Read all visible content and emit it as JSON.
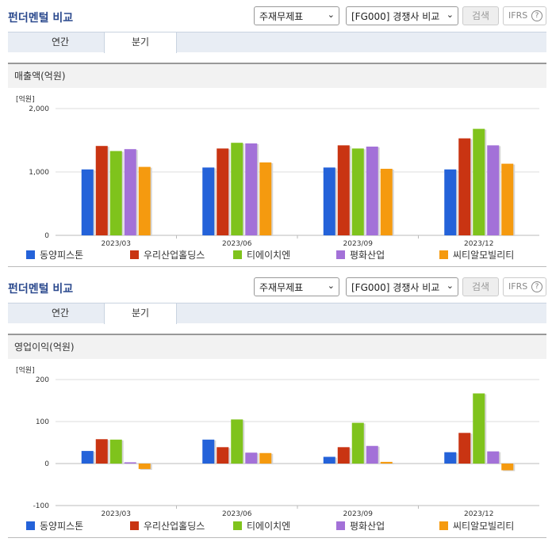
{
  "panels": [
    {
      "title": "펀더멘털 비교",
      "select1": "주재무제표",
      "select2": "[FG000] 경쟁사 비교",
      "search_label": "검색",
      "ifrs_label": "IFRS",
      "ifrs_help": "?",
      "tabs": [
        "연간",
        "분기"
      ],
      "active_tab": "분기",
      "chart_title": "매출액(억원)",
      "unit": "[억원]"
    },
    {
      "title": "펀더멘털 비교",
      "select1": "주재무제표",
      "select2": "[FG000] 경쟁사 비교",
      "search_label": "검색",
      "ifrs_label": "IFRS",
      "ifrs_help": "?",
      "tabs": [
        "연간",
        "분기"
      ],
      "active_tab": "분기",
      "chart_title": "영업이익(억원)",
      "unit": "[억원]"
    }
  ],
  "chart_data": [
    {
      "type": "bar",
      "title": "매출액(억원)",
      "ylabel": "[억원]",
      "categories": [
        "2023/03",
        "2023/06",
        "2023/09",
        "2023/12"
      ],
      "ylim": [
        0,
        2000
      ],
      "yticks": [
        0,
        1000,
        2000
      ],
      "ytick_labels": [
        "0",
        "1,000",
        "2,000"
      ],
      "series": [
        {
          "name": "동양피스톤",
          "color": "#2462d9",
          "values": [
            1040,
            1070,
            1070,
            1040
          ]
        },
        {
          "name": "우리산업홀딩스",
          "color": "#c93412",
          "values": [
            1410,
            1370,
            1420,
            1530
          ]
        },
        {
          "name": "티에이치엔",
          "color": "#7fc31c",
          "values": [
            1330,
            1460,
            1370,
            1680
          ]
        },
        {
          "name": "평화산업",
          "color": "#a371d8",
          "values": [
            1360,
            1450,
            1400,
            1420
          ]
        },
        {
          "name": "씨티알모빌리티",
          "color": "#f59a0f",
          "values": [
            1080,
            1150,
            1050,
            1130
          ]
        }
      ],
      "legend_position": "bottom"
    },
    {
      "type": "bar",
      "title": "영업이익(억원)",
      "ylabel": "[억원]",
      "categories": [
        "2023/03",
        "2023/06",
        "2023/09",
        "2023/12"
      ],
      "ylim": [
        -100,
        200
      ],
      "yticks": [
        -100,
        0,
        100,
        200
      ],
      "ytick_labels": [
        "-100",
        "0",
        "100",
        "200"
      ],
      "series": [
        {
          "name": "동양피스톤",
          "color": "#2462d9",
          "values": [
            30,
            57,
            16,
            27
          ]
        },
        {
          "name": "우리산업홀딩스",
          "color": "#c93412",
          "values": [
            58,
            39,
            39,
            73
          ]
        },
        {
          "name": "티에이치엔",
          "color": "#7fc31c",
          "values": [
            57,
            105,
            97,
            167
          ]
        },
        {
          "name": "평화산업",
          "color": "#a371d8",
          "values": [
            3,
            26,
            42,
            29
          ]
        },
        {
          "name": "씨티알모빌리티",
          "color": "#f59a0f",
          "values": [
            -13,
            25,
            4,
            -16
          ]
        }
      ],
      "legend_position": "bottom"
    }
  ]
}
